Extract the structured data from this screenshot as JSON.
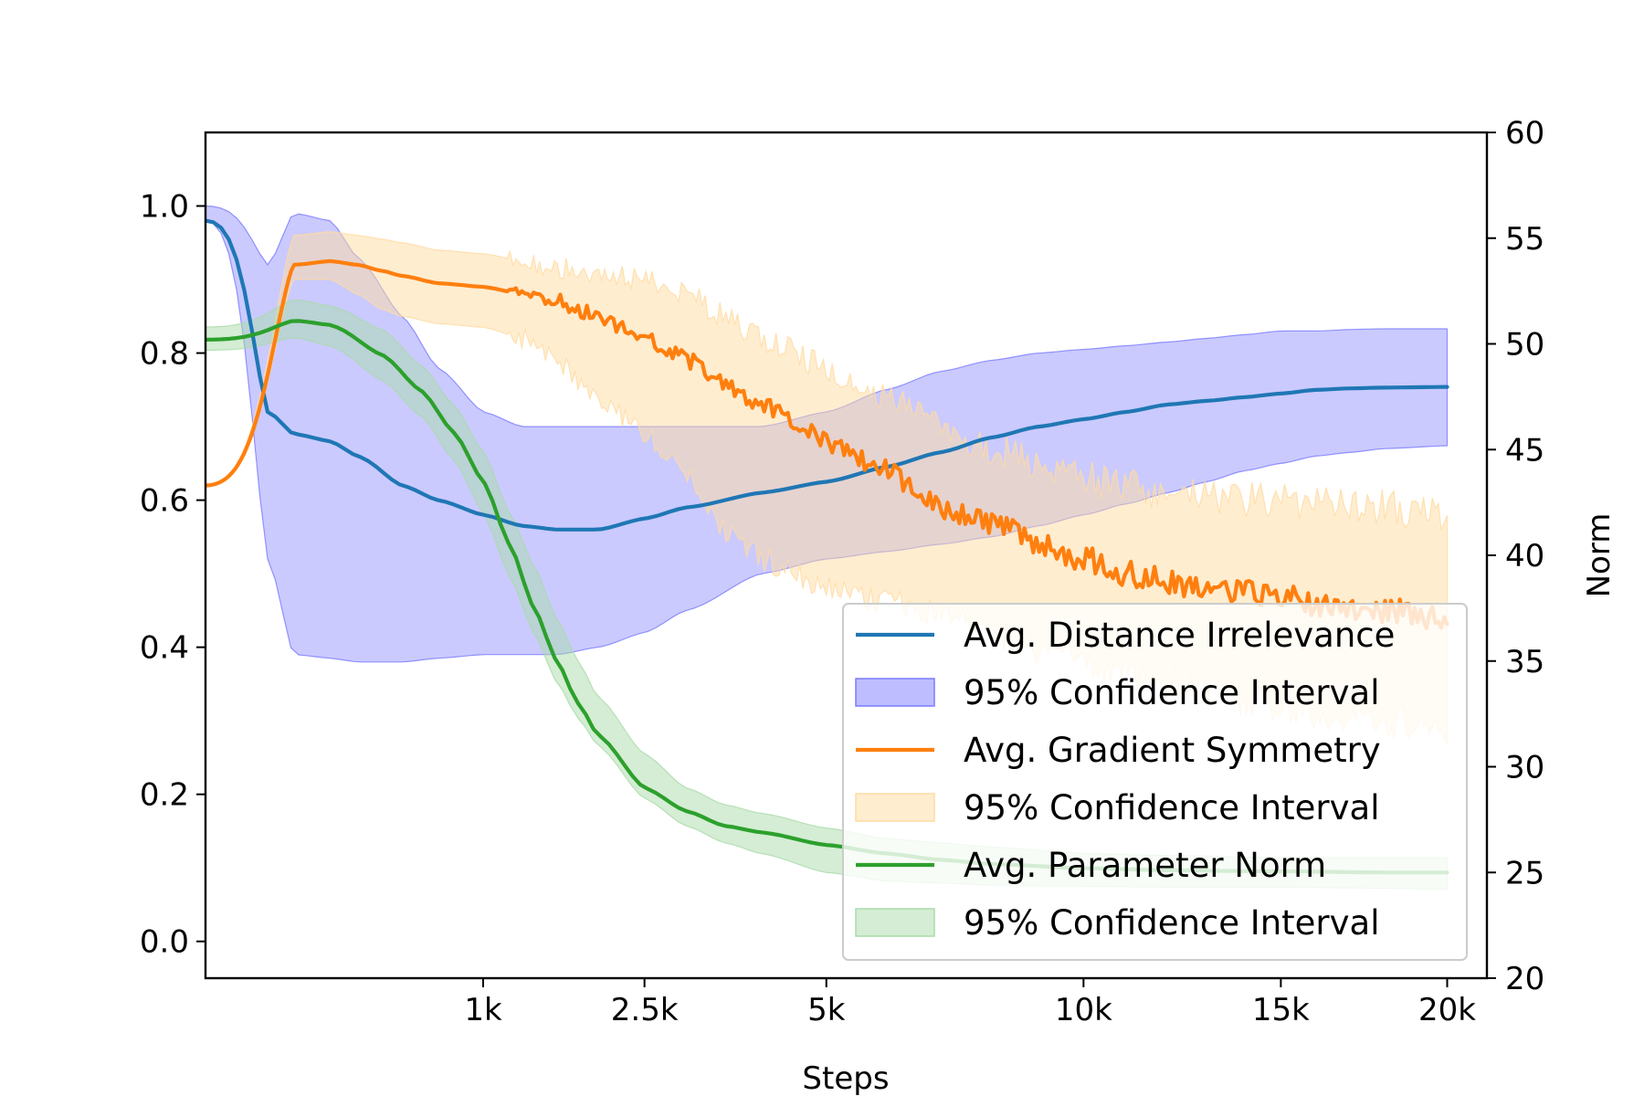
{
  "chart_data": {
    "type": "line",
    "xlabel": "Steps",
    "ylabel_right": "Norm",
    "x_scale": "sqrt",
    "xlim": [
      0,
      21300
    ],
    "ylim_left": [
      -0.05,
      1.1
    ],
    "ylim_right": [
      20,
      60
    ],
    "x_ticks": [
      {
        "value": 1000,
        "label": "1k"
      },
      {
        "value": 2500,
        "label": "2.5k"
      },
      {
        "value": 5000,
        "label": "5k"
      },
      {
        "value": 10000,
        "label": "10k"
      },
      {
        "value": 15000,
        "label": "15k"
      },
      {
        "value": 20000,
        "label": "20k"
      }
    ],
    "y_ticks_left": [
      "0.0",
      "0.2",
      "0.4",
      "0.6",
      "0.8",
      "1.0"
    ],
    "y_ticks_right": [
      "20",
      "25",
      "30",
      "35",
      "40",
      "45",
      "50",
      "55",
      "60"
    ],
    "grid": false,
    "legend_position": "lower-right",
    "series": [
      {
        "name": "Avg. Distance Irrelevance",
        "axis": "left",
        "color": "#1f77b4",
        "band_name": "95% Confidence Interval",
        "band_color": "#7b7bff",
        "x": [
          0,
          50,
          100,
          200,
          300,
          500,
          700,
          1000,
          1300,
          1600,
          2000,
          2500,
          3000,
          4000,
          5000,
          6000,
          7000,
          8000,
          9000,
          10000,
          11000,
          12000,
          13000,
          14000,
          15000,
          16000,
          17000,
          18000,
          20000
        ],
        "y": [
          0.98,
          0.72,
          0.69,
          0.68,
          0.66,
          0.62,
          0.6,
          0.58,
          0.565,
          0.56,
          0.56,
          0.575,
          0.59,
          0.61,
          0.625,
          0.645,
          0.665,
          0.685,
          0.7,
          0.71,
          0.72,
          0.73,
          0.735,
          0.74,
          0.745,
          0.75,
          0.752,
          0.753,
          0.754
        ],
        "lower": [
          0.98,
          0.52,
          0.39,
          0.385,
          0.38,
          0.38,
          0.385,
          0.39,
          0.39,
          0.39,
          0.4,
          0.42,
          0.45,
          0.5,
          0.52,
          0.53,
          0.54,
          0.55,
          0.565,
          0.58,
          0.595,
          0.61,
          0.625,
          0.64,
          0.65,
          0.66,
          0.665,
          0.67,
          0.674
        ],
        "upper": [
          1.0,
          0.92,
          0.99,
          0.98,
          0.93,
          0.85,
          0.78,
          0.72,
          0.7,
          0.7,
          0.7,
          0.7,
          0.7,
          0.7,
          0.72,
          0.75,
          0.775,
          0.79,
          0.8,
          0.805,
          0.81,
          0.815,
          0.82,
          0.825,
          0.83,
          0.83,
          0.832,
          0.833,
          0.833
        ]
      },
      {
        "name": "Avg. Gradient Symmetry",
        "axis": "left",
        "color": "#ff7f0e",
        "band_name": "95% Confidence Interval",
        "band_color": "#ffdba1",
        "x": [
          0,
          100,
          200,
          300,
          400,
          500,
          700,
          1000,
          1300,
          1600,
          2000,
          2500,
          3000,
          3500,
          4000,
          5000,
          6000,
          7000,
          8000,
          9000,
          10000,
          11000,
          12000,
          13000,
          14000,
          15000,
          16000,
          17000,
          18000,
          20000
        ],
        "y": [
          0.62,
          0.92,
          0.925,
          0.92,
          0.912,
          0.905,
          0.895,
          0.89,
          0.88,
          0.87,
          0.85,
          0.82,
          0.79,
          0.76,
          0.73,
          0.68,
          0.64,
          0.59,
          0.57,
          0.54,
          0.52,
          0.5,
          0.49,
          0.48,
          0.475,
          0.47,
          0.46,
          0.455,
          0.45,
          0.44
        ],
        "lower": [
          0.62,
          0.9,
          0.9,
          0.88,
          0.86,
          0.85,
          0.84,
          0.835,
          0.82,
          0.79,
          0.74,
          0.69,
          0.63,
          0.56,
          0.52,
          0.48,
          0.46,
          0.45,
          0.42,
          0.4,
          0.38,
          0.36,
          0.35,
          0.34,
          0.33,
          0.32,
          0.31,
          0.3,
          0.3,
          0.29
        ],
        "upper": [
          0.62,
          0.96,
          0.965,
          0.96,
          0.955,
          0.95,
          0.94,
          0.935,
          0.925,
          0.915,
          0.91,
          0.9,
          0.88,
          0.85,
          0.82,
          0.78,
          0.74,
          0.7,
          0.67,
          0.65,
          0.63,
          0.62,
          0.61,
          0.605,
          0.6,
          0.6,
          0.595,
          0.59,
          0.59,
          0.58
        ]
      },
      {
        "name": "Avg. Parameter Norm",
        "axis": "right",
        "color": "#2ca02c",
        "band_name": "95% Confidence Interval",
        "band_color": "#a9dba9",
        "x": [
          0,
          100,
          200,
          400,
          600,
          800,
          1000,
          1200,
          1400,
          1600,
          1800,
          2000,
          2500,
          3000,
          3500,
          4000,
          5000,
          6000,
          7000,
          8000,
          10000,
          12000,
          15000,
          18000,
          20000
        ],
        "y": [
          50.2,
          51.1,
          50.9,
          49.5,
          47.8,
          45.8,
          43.5,
          40.5,
          37.5,
          35.0,
          33.0,
          31.5,
          29.0,
          27.9,
          27.2,
          26.9,
          26.3,
          25.9,
          25.6,
          25.4,
          25.2,
          25.1,
          25.05,
          25.0,
          25.0
        ],
        "lower": [
          49.7,
          50.3,
          49.9,
          48.3,
          46.6,
          44.5,
          42.0,
          39.0,
          36.3,
          34.0,
          32.3,
          31.0,
          28.5,
          27.2,
          26.4,
          25.9,
          25.0,
          24.6,
          24.5,
          24.4,
          24.35,
          24.3,
          24.3,
          24.25,
          24.2
        ],
        "upper": [
          50.8,
          52.1,
          51.8,
          50.7,
          49.0,
          47.1,
          44.9,
          42.0,
          39.5,
          37.0,
          35.0,
          33.3,
          30.6,
          29.0,
          28.2,
          27.8,
          27.1,
          26.6,
          26.4,
          26.2,
          25.9,
          25.8,
          25.7,
          25.7,
          25.7
        ]
      }
    ]
  }
}
